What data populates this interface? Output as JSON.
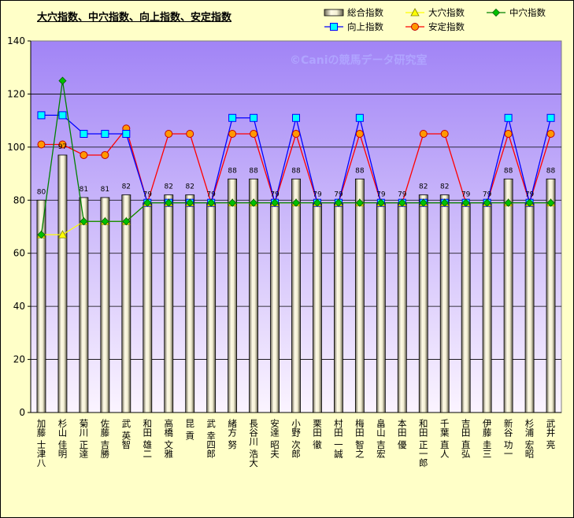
{
  "chart_data": {
    "type": "bar",
    "title": "大穴指数、中穴指数、向上指数、安定指数",
    "watermark": "©Caniの競馬データ研究室",
    "categories": [
      "加藤 士津八",
      "杉山 佳明",
      "菊川 正達",
      "佐藤 吉勝",
      "武 英智",
      "和田 雄二",
      "高橋 文雅",
      "昆 貢",
      "武 幸四郎",
      "緒方 努",
      "長谷川 浩大",
      "安達 昭夫",
      "小野 次郎",
      "栗田 徹",
      "村田 一誠",
      "梅田 智之",
      "畠山 吉宏",
      "本田 優",
      "和田 正一郎",
      "千葉 直人",
      "吉田 直弘",
      "伊藤 圭三",
      "新谷 功一",
      "杉浦 宏昭",
      "武井 亮"
    ],
    "ylim": [
      0,
      140
    ],
    "yticks": [
      0,
      20,
      40,
      60,
      80,
      100,
      120,
      140
    ],
    "grid": true,
    "legend_position": "top-right",
    "series": [
      {
        "name": "総合指数",
        "kind": "bar",
        "color": "#ece8c8",
        "values": [
          80,
          97,
          81,
          81,
          82,
          79,
          82,
          82,
          79,
          88,
          88,
          79,
          88,
          79,
          79,
          88,
          79,
          79,
          82,
          82,
          79,
          79,
          88,
          79,
          88
        ],
        "labels": [
          "80",
          "97",
          "81",
          "81",
          "82",
          "79",
          "82",
          "82",
          "79",
          "88",
          "88",
          "79",
          "88",
          "79",
          "79",
          "88",
          "79",
          "79",
          "82",
          "82",
          "79",
          "79",
          "88",
          "79",
          "88"
        ]
      },
      {
        "name": "大穴指数",
        "kind": "line",
        "color": "#ffff00",
        "marker": "triangle",
        "values": [
          67,
          67,
          72,
          72,
          72,
          79,
          79,
          79,
          79,
          79,
          79,
          79,
          79,
          79,
          79,
          79,
          79,
          79,
          79,
          79,
          79,
          79,
          79,
          79,
          79
        ]
      },
      {
        "name": "中穴指数",
        "kind": "line",
        "color": "#008000",
        "marker": "diamond",
        "values": [
          67,
          125,
          72,
          72,
          72,
          79,
          79,
          79,
          79,
          79,
          79,
          79,
          79,
          79,
          79,
          79,
          79,
          79,
          79,
          79,
          79,
          79,
          79,
          79,
          79
        ]
      },
      {
        "name": "向上指数",
        "kind": "line",
        "color": "#0000ff",
        "marker": "square",
        "values": [
          112,
          112,
          105,
          105,
          105,
          79,
          79,
          79,
          79,
          111,
          111,
          79,
          111,
          79,
          79,
          111,
          79,
          79,
          79,
          79,
          79,
          79,
          111,
          79,
          111
        ]
      },
      {
        "name": "安定指数",
        "kind": "line",
        "color": "#ff0000",
        "marker": "circle",
        "values": [
          101,
          101,
          97,
          97,
          107,
          79,
          105,
          105,
          79,
          105,
          105,
          79,
          105,
          79,
          79,
          105,
          79,
          79,
          105,
          105,
          79,
          79,
          105,
          79,
          105
        ]
      }
    ]
  }
}
